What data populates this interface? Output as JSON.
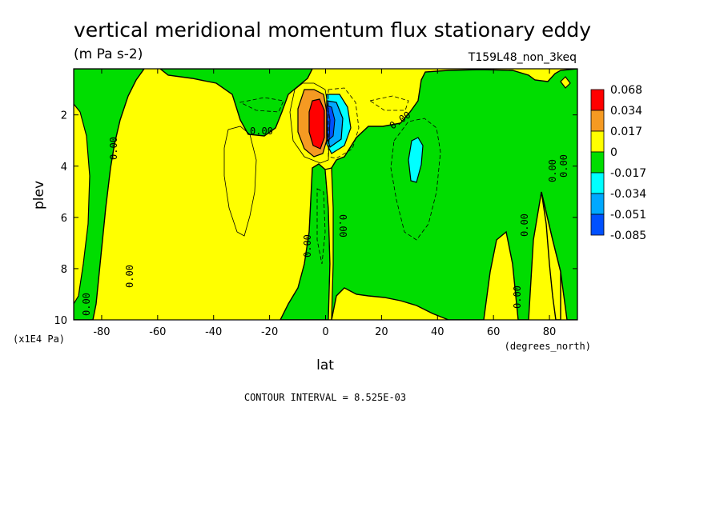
{
  "chart_data": {
    "type": "heatmap",
    "title": "vertical meridional momentum flux stationary eddy",
    "subtitle": "(m Pa s-2)",
    "run_label": "T159L48_non_3keq",
    "xlabel": "lat",
    "xunits": "(degrees_north)",
    "ylabel": "plev",
    "yunits": "(x1E4 Pa)",
    "xlim": [
      -90,
      90
    ],
    "ylim": [
      10,
      0.2
    ],
    "x_ticks": [
      "-80",
      "-60",
      "-40",
      "-20",
      "0",
      "20",
      "40",
      "60",
      "80"
    ],
    "y_ticks": [
      "2",
      "4",
      "6",
      "8",
      "10"
    ],
    "contour_interval": "CONTOUR INTERVAL = 8.525E-03",
    "contour_label": "0.00",
    "legend": {
      "position": "right",
      "levels": [
        "0.068",
        "0.034",
        "0.017",
        "0",
        "-0.017",
        "-0.034",
        "-0.051",
        "-0.085"
      ],
      "colors": [
        "#ff0000",
        "#f59a22",
        "#ffff00",
        "#00dd00",
        "#00ffff",
        "#00a8ff",
        "#0050ff"
      ]
    },
    "regions": [
      {
        "name": "positive-max",
        "lat": -2.5,
        "plev": 2.1,
        "value": 0.068
      },
      {
        "name": "negative-min",
        "lat": 2.5,
        "plev": 2.2,
        "value": -0.085
      },
      {
        "name": "nh-subtropical-negative",
        "lat": 32,
        "plev": 3.8,
        "value": -0.034
      },
      {
        "name": "sh-positive",
        "lat": -30,
        "plev": 5,
        "value": 0.017
      }
    ]
  }
}
